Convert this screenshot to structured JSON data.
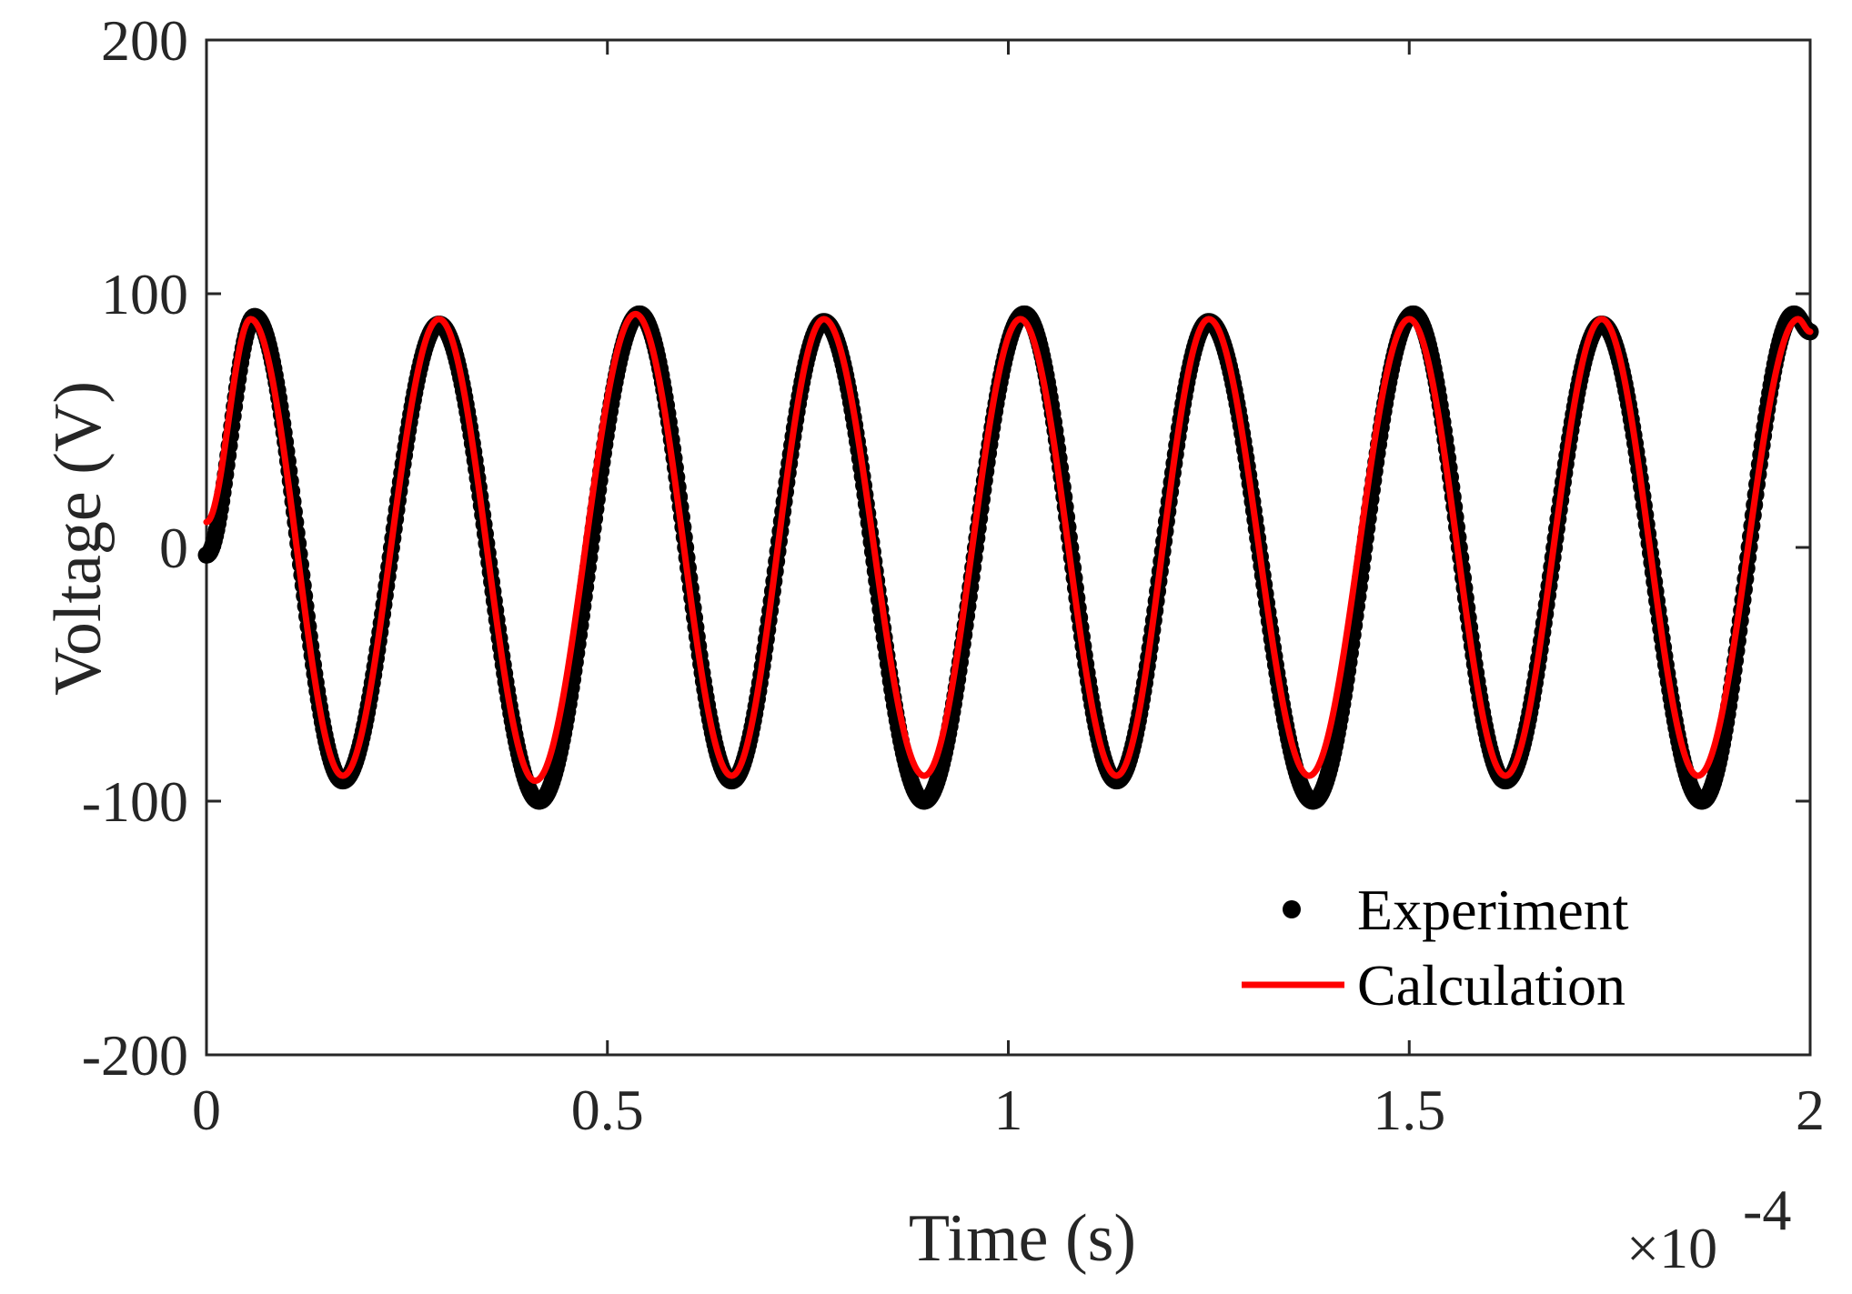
{
  "chart_data": {
    "type": "line",
    "title": "",
    "xlabel": "Time (s)",
    "ylabel": "Voltage (V)",
    "x_multiplier_label": "×10",
    "x_multiplier_exponent": "-4",
    "xlim": [
      0,
      2
    ],
    "ylim": [
      -200,
      200
    ],
    "x_unit_scale": 0.0001,
    "xticks": [
      0,
      0.5,
      1,
      1.5,
      2
    ],
    "xtick_labels": [
      "0",
      "0.5",
      "1",
      "1.5",
      "2"
    ],
    "yticks": [
      -200,
      -100,
      0,
      100,
      200
    ],
    "ytick_labels": [
      "-200",
      "-100",
      "0",
      "100",
      "200"
    ],
    "grid": false,
    "legend_position": "bottom-right",
    "series": [
      {
        "name": "Experiment",
        "style": "markers",
        "color": "#000000",
        "extrema": [
          [
            0.0,
            -3
          ],
          [
            0.06,
            91
          ],
          [
            0.17,
            -92
          ],
          [
            0.29,
            88
          ],
          [
            0.415,
            -100
          ],
          [
            0.54,
            92
          ],
          [
            0.655,
            -92
          ],
          [
            0.77,
            89
          ],
          [
            0.895,
            -100
          ],
          [
            1.02,
            92
          ],
          [
            1.135,
            -92
          ],
          [
            1.25,
            89
          ],
          [
            1.38,
            -100
          ],
          [
            1.505,
            92
          ],
          [
            1.62,
            -92
          ],
          [
            1.74,
            88
          ],
          [
            1.865,
            -100
          ],
          [
            1.98,
            92
          ],
          [
            2.0,
            85
          ]
        ]
      },
      {
        "name": "Calculation",
        "style": "line",
        "color": "#ff0000",
        "extrema": [
          [
            0.0,
            10
          ],
          [
            0.055,
            90
          ],
          [
            0.17,
            -90
          ],
          [
            0.29,
            90
          ],
          [
            0.41,
            -92
          ],
          [
            0.535,
            92
          ],
          [
            0.655,
            -90
          ],
          [
            0.77,
            90
          ],
          [
            0.895,
            -90
          ],
          [
            1.015,
            90
          ],
          [
            1.135,
            -90
          ],
          [
            1.25,
            90
          ],
          [
            1.375,
            -90
          ],
          [
            1.5,
            90
          ],
          [
            1.62,
            -90
          ],
          [
            1.74,
            90
          ],
          [
            1.86,
            -90
          ],
          [
            1.985,
            90
          ],
          [
            2.0,
            85
          ]
        ]
      }
    ]
  },
  "legend": {
    "items": [
      {
        "label": "Experiment",
        "color": "#000000",
        "marker": "dot"
      },
      {
        "label": "Calculation",
        "color": "#ff0000",
        "marker": "line"
      }
    ]
  }
}
